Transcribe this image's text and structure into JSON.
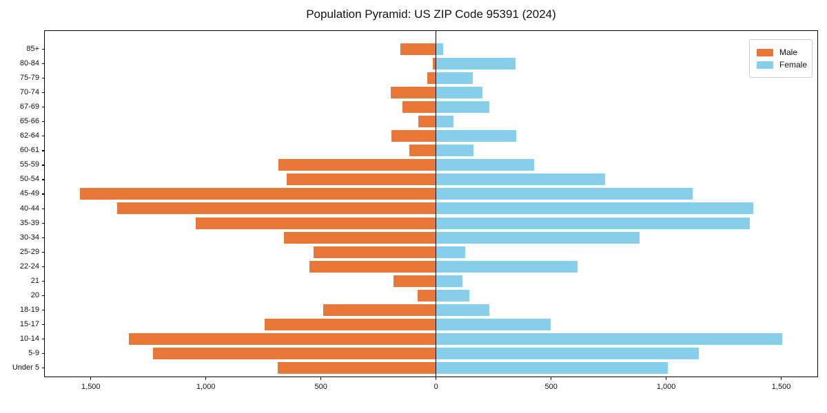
{
  "chart_data": {
    "type": "bar",
    "variant": "population-pyramid",
    "title": "Population Pyramid: US ZIP Code 95391 (2024)",
    "categories_top_to_bottom": [
      "85+",
      "80-84",
      "75-79",
      "70-74",
      "67-69",
      "65-66",
      "62-64",
      "60-61",
      "55-59",
      "50-54",
      "45-49",
      "40-44",
      "35-39",
      "30-34",
      "25-29",
      "22-24",
      "21",
      "20",
      "18-19",
      "15-17",
      "10-14",
      "5-9",
      "Under 5"
    ],
    "series": [
      {
        "name": "Male",
        "side": "left",
        "color": "#e8783a",
        "values": [
          155,
          13,
          38,
          198,
          146,
          76,
          194,
          117,
          686,
          648,
          1547,
          1386,
          1045,
          661,
          533,
          549,
          184,
          80,
          491,
          744,
          1335,
          1229,
          688
        ]
      },
      {
        "name": "Female",
        "side": "right",
        "color": "#87ceeb",
        "values": [
          30,
          345,
          160,
          201,
          231,
          77,
          347,
          162,
          425,
          734,
          1114,
          1378,
          1364,
          883,
          126,
          616,
          114,
          145,
          232,
          498,
          1504,
          1143,
          1007
        ]
      }
    ],
    "xlim": [
      -1700,
      1657
    ],
    "x_ticks": [
      {
        "value": -1500,
        "label": "1,500"
      },
      {
        "value": -1000,
        "label": "1,000"
      },
      {
        "value": -500,
        "label": "500"
      },
      {
        "value": 0,
        "label": "0"
      },
      {
        "value": 500,
        "label": "500"
      },
      {
        "value": 1000,
        "label": "1,000"
      },
      {
        "value": 1500,
        "label": "1,500"
      }
    ],
    "grid": false,
    "legend_position": "upper right",
    "axis_color": "#000000"
  }
}
